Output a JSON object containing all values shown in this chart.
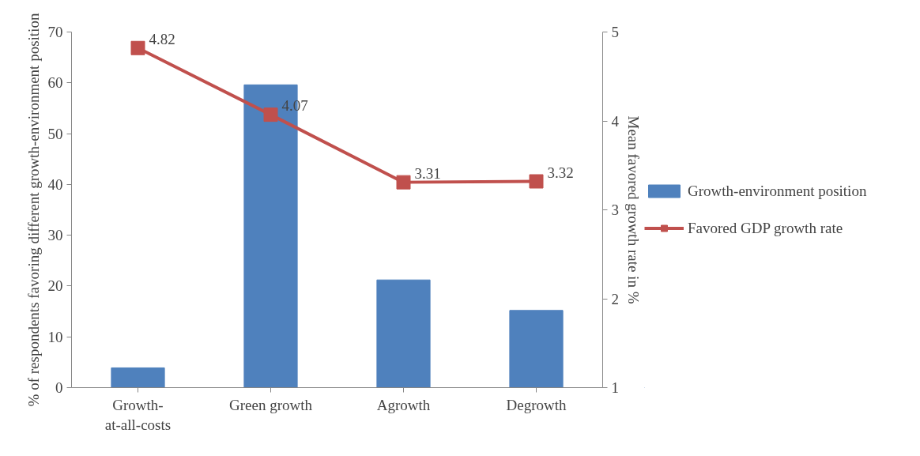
{
  "chart_data": {
    "type": "bar",
    "ylabel": "% of respondents favoring different growth-environment position",
    "y2label": "Mean favored growth rate in %",
    "categories": [
      "Growth-at-all-costs",
      "Green growth",
      "Agrowth",
      "Degrowth"
    ],
    "series": [
      {
        "name": "Growth-environment position",
        "color": "#4f81bd",
        "values": [
          3.9,
          59.6,
          21.2,
          15.2
        ]
      },
      {
        "name": "Favored GDP growth rate",
        "type": "line",
        "axis": "y2",
        "color": "#c0504d",
        "marker": "square",
        "values": [
          4.82,
          4.07,
          3.31,
          3.32
        ],
        "value_labels": [
          "4.82",
          "4.07",
          "3.31",
          "3.32"
        ]
      }
    ],
    "ylim": [
      0,
      70
    ],
    "yticks": [
      0,
      10,
      20,
      30,
      40,
      50,
      60,
      70
    ],
    "y2lim": [
      1,
      5
    ],
    "y2ticks": [
      1,
      2,
      3,
      4,
      5
    ],
    "grid": false,
    "legend": "right"
  }
}
